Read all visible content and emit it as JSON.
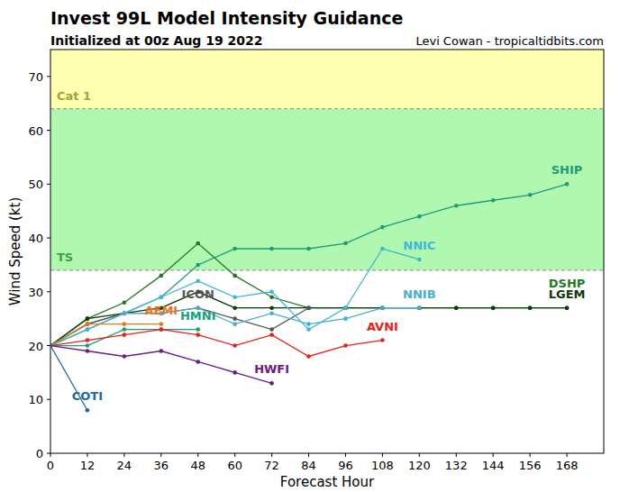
{
  "chart_data": {
    "type": "line",
    "title": "Invest 99L Model Intensity Guidance",
    "subtitle": "Initialized at 00z Aug 19 2022",
    "credit": "Levi Cowan - tropicaltidbits.com",
    "x_label": "Forecast Hour",
    "y_label": "Wind Speed (kt)",
    "x": [
      0,
      12,
      24,
      36,
      48,
      60,
      72,
      84,
      96,
      108,
      120,
      132,
      144,
      156,
      168
    ],
    "xlim": [
      0,
      180
    ],
    "ylim": [
      0,
      75
    ],
    "xticks": [
      0,
      12,
      24,
      36,
      48,
      60,
      72,
      84,
      96,
      108,
      120,
      132,
      144,
      156,
      168
    ],
    "yticks": [
      0,
      10,
      20,
      30,
      40,
      50,
      60,
      70
    ],
    "marker": "circle",
    "bands": [
      {
        "label": "TS",
        "from": 34,
        "to": 64,
        "color": "#b0f7b0"
      },
      {
        "label": "Cat 1",
        "from": 64,
        "to": 75,
        "color": "#ffffb0"
      }
    ],
    "series": [
      {
        "name": "SHIP",
        "color": "#1b9e77",
        "values": [
          20,
          24,
          26,
          29,
          35,
          38,
          38,
          38,
          39,
          42,
          44,
          46,
          47,
          48,
          50
        ]
      },
      {
        "name": "DSHP",
        "color": "#1f7a1f",
        "values": [
          20,
          25,
          28,
          33,
          39,
          33,
          29,
          27,
          27,
          27,
          27,
          27,
          27,
          27,
          27
        ]
      },
      {
        "name": "LGEM",
        "color": "#0a3a0a",
        "values": [
          20,
          25,
          26,
          27,
          30,
          27,
          27,
          27,
          27,
          27,
          27,
          27,
          27,
          27,
          27
        ]
      },
      {
        "name": "ICON",
        "color": "#555555",
        "values": [
          20,
          24,
          26,
          26,
          27,
          25,
          23,
          27,
          null,
          null,
          null,
          null,
          null,
          null,
          null
        ]
      },
      {
        "name": "NNIC",
        "color": "#3fb8d8",
        "values": [
          20,
          23,
          26,
          29,
          32,
          29,
          30,
          23,
          27,
          38,
          36,
          null,
          null,
          null,
          null
        ]
      },
      {
        "name": "NNIB",
        "color": "#48aecb",
        "values": [
          20,
          23,
          26,
          26,
          27,
          24,
          26,
          24,
          25,
          27,
          27,
          null,
          null,
          null,
          null
        ]
      },
      {
        "name": "AEMI",
        "color": "#e8761a",
        "values": [
          20,
          24,
          24,
          24,
          null,
          null,
          null,
          null,
          null,
          null,
          null,
          null,
          null,
          null,
          null
        ]
      },
      {
        "name": "HMNI",
        "color": "#17a07a",
        "values": [
          20,
          20,
          23,
          23,
          23,
          null,
          null,
          null,
          null,
          null,
          null,
          null,
          null,
          null,
          null
        ]
      },
      {
        "name": "AVNI",
        "color": "#e8201a",
        "values": [
          20,
          21,
          22,
          23,
          22,
          20,
          22,
          18,
          20,
          21,
          null,
          null,
          null,
          null,
          null
        ]
      },
      {
        "name": "HWFI",
        "color": "#6a1a8a",
        "values": [
          20,
          19,
          18,
          19,
          17,
          15,
          13,
          null,
          null,
          null,
          null,
          null,
          null,
          null,
          null
        ]
      },
      {
        "name": "COTI",
        "color": "#1a6aa0",
        "values": [
          20,
          8,
          null,
          null,
          null,
          null,
          null,
          null,
          null,
          null,
          null,
          null,
          null,
          null,
          null
        ]
      }
    ]
  }
}
